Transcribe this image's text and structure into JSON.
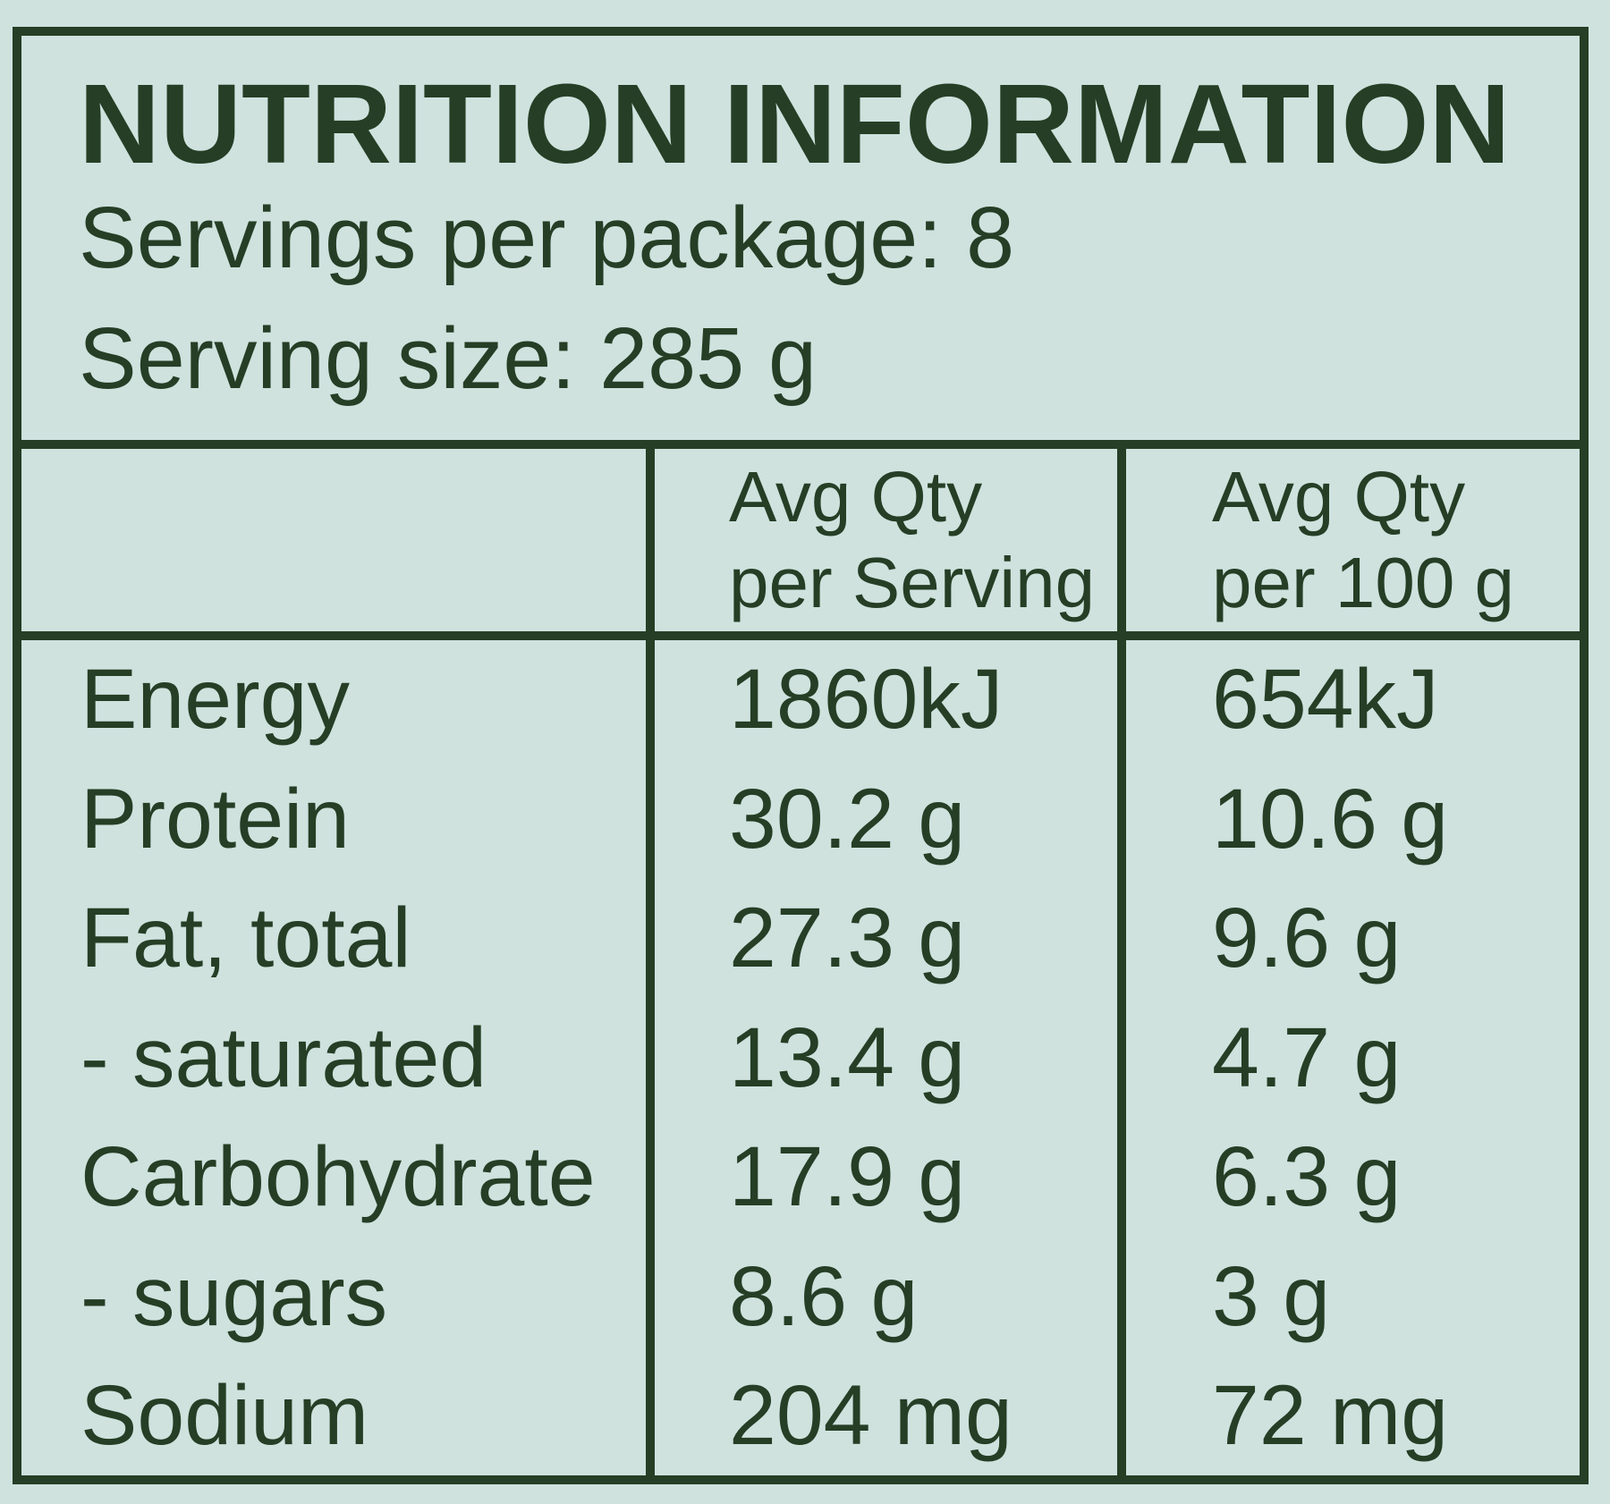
{
  "title": "NUTRITION INFORMATION",
  "package_info": {
    "servings_per_package": "Servings per package: 8",
    "serving_size": "Serving size: 285 g"
  },
  "table": {
    "header": {
      "col1": "",
      "col2": [
        "Avg Qty",
        "per Serving"
      ],
      "col3": [
        "Avg Qty",
        "per 100 g"
      ]
    },
    "rows": [
      {
        "nutrient": "Energy",
        "per_serving": "1860kJ",
        "per_100g": "654kJ"
      },
      {
        "nutrient": "Protein",
        "per_serving": "30.2 g",
        "per_100g": "10.6 g"
      },
      {
        "nutrient": "Fat, total",
        "per_serving": "27.3 g",
        "per_100g": "9.6 g"
      },
      {
        "nutrient": "- saturated",
        "per_serving": "13.4 g",
        "per_100g": "4.7 g"
      },
      {
        "nutrient": "Carbohydrate",
        "per_serving": "17.9 g",
        "per_100g": "6.3 g"
      },
      {
        "nutrient": "- sugars",
        "per_serving": "8.6 g",
        "per_100g": "3 g"
      },
      {
        "nutrient": "Sodium",
        "per_serving": "204 mg",
        "per_100g": "72 mg"
      }
    ]
  },
  "colors": {
    "background": "#cfe2de",
    "ink": "#253e25",
    "border": "#253e25"
  }
}
